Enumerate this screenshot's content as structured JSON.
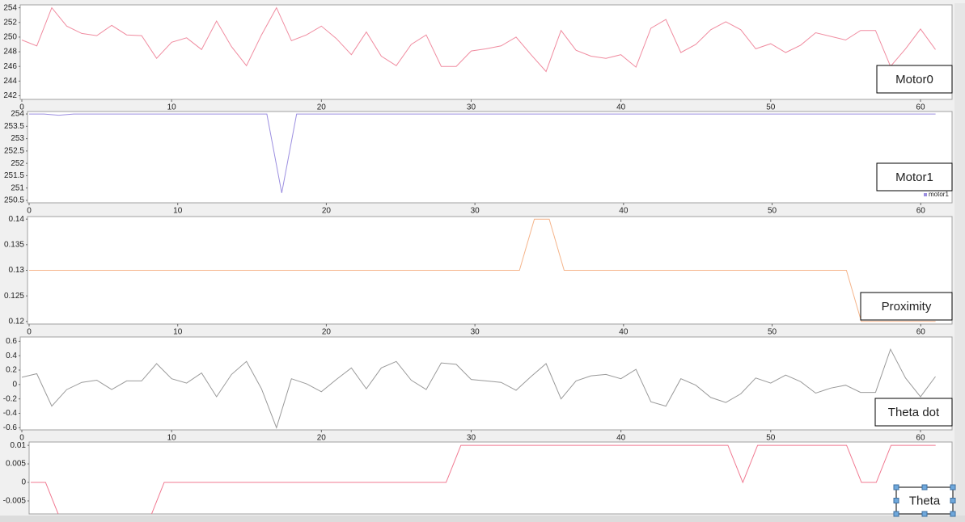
{
  "chart_data": [
    {
      "type": "line",
      "title": "Motor0",
      "x": [
        0,
        1,
        2,
        3,
        4,
        5,
        6,
        7,
        8,
        9,
        10,
        11,
        12,
        13,
        14,
        15,
        16,
        17,
        18,
        19,
        20,
        21,
        22,
        23,
        24,
        25,
        26,
        27,
        28,
        29,
        30,
        31,
        32,
        33,
        34,
        35,
        36,
        37,
        38,
        39,
        40,
        41,
        42,
        43,
        44,
        45,
        46,
        47,
        48,
        49,
        50,
        51,
        52,
        53,
        54,
        55,
        56,
        57,
        58,
        59,
        60,
        61
      ],
      "values": [
        249.6,
        248.8,
        254,
        251.5,
        250.5,
        250.2,
        251.6,
        250.3,
        250.2,
        247.1,
        249.3,
        249.9,
        248.3,
        252.2,
        248.7,
        246.1,
        250.3,
        254,
        249.5,
        250.3,
        251.5,
        249.8,
        247.6,
        250.7,
        247.4,
        246.1,
        249,
        250.3,
        246,
        246,
        248.1,
        248.4,
        248.8,
        250,
        247.6,
        245.3,
        250.9,
        248.2,
        247.4,
        247.1,
        247.6,
        245.9,
        251.2,
        252.4,
        247.9,
        249,
        251,
        252.1,
        251,
        248.4,
        249.1,
        247.9,
        248.9,
        250.6,
        250.1,
        249.6,
        250.9,
        250.9,
        246,
        248.4,
        251.1,
        248.3
      ],
      "color": "#f08ca0",
      "xlim": [
        0,
        62
      ],
      "xticks": [
        0,
        10,
        20,
        30,
        40,
        50,
        60
      ],
      "ylim": [
        241.5,
        254.4
      ],
      "yticks": [
        242,
        244,
        246,
        248,
        250,
        252,
        254
      ]
    },
    {
      "type": "line",
      "title": "Motor1",
      "x": [
        0,
        1,
        2,
        3,
        4,
        5,
        6,
        7,
        8,
        9,
        10,
        11,
        12,
        13,
        14,
        15,
        16,
        17,
        18,
        19,
        20,
        21,
        22,
        23,
        24,
        25,
        26,
        27,
        28,
        29,
        30,
        31,
        32,
        33,
        34,
        35,
        36,
        37,
        38,
        39,
        40,
        41,
        42,
        43,
        44,
        45,
        46,
        47,
        48,
        49,
        50,
        51,
        52,
        53,
        54,
        55,
        56,
        57,
        58,
        59,
        60,
        61
      ],
      "series": [
        {
          "name": "motor1",
          "color": "#9c8fe0",
          "values": [
            254,
            254,
            253.95,
            254,
            254,
            254,
            254,
            254,
            254,
            254,
            254,
            254,
            254,
            254,
            254,
            254,
            254,
            250.8,
            254,
            254,
            254,
            254,
            254,
            254,
            254,
            254,
            254,
            254,
            254,
            254,
            254,
            254,
            254,
            254,
            254,
            254,
            254,
            254,
            254,
            254,
            254,
            254,
            254,
            254,
            254,
            254,
            254,
            254,
            254,
            254,
            254,
            254,
            254,
            254,
            254,
            254,
            254,
            254,
            254,
            254,
            254,
            254
          ]
        }
      ],
      "xlim": [
        0,
        62
      ],
      "xticks": [
        0,
        10,
        20,
        30,
        40,
        50,
        60
      ],
      "ylim": [
        250.4,
        254.1
      ],
      "yticks": [
        250.5,
        251,
        251.5,
        252,
        252.5,
        253,
        253.5,
        254
      ]
    },
    {
      "type": "line",
      "title": "Proximity",
      "x": [
        0,
        1,
        2,
        3,
        4,
        5,
        6,
        7,
        8,
        9,
        10,
        11,
        12,
        13,
        14,
        15,
        16,
        17,
        18,
        19,
        20,
        21,
        22,
        23,
        24,
        25,
        26,
        27,
        28,
        29,
        30,
        31,
        32,
        33,
        34,
        35,
        36,
        37,
        38,
        39,
        40,
        41,
        42,
        43,
        44,
        45,
        46,
        47,
        48,
        49,
        50,
        51,
        52,
        53,
        54,
        55,
        56,
        57,
        58,
        59,
        60,
        61
      ],
      "values": [
        0.13,
        0.13,
        0.13,
        0.13,
        0.13,
        0.13,
        0.13,
        0.13,
        0.13,
        0.13,
        0.13,
        0.13,
        0.13,
        0.13,
        0.13,
        0.13,
        0.13,
        0.13,
        0.13,
        0.13,
        0.13,
        0.13,
        0.13,
        0.13,
        0.13,
        0.13,
        0.13,
        0.13,
        0.13,
        0.13,
        0.13,
        0.13,
        0.13,
        0.13,
        0.14,
        0.14,
        0.13,
        0.13,
        0.13,
        0.13,
        0.13,
        0.13,
        0.13,
        0.13,
        0.13,
        0.13,
        0.13,
        0.13,
        0.13,
        0.13,
        0.13,
        0.13,
        0.13,
        0.13,
        0.13,
        0.13,
        0.12,
        0.12,
        0.12,
        0.12,
        0.12,
        0.12
      ],
      "color": "#f5b48a",
      "xlim": [
        0,
        62
      ],
      "xticks": [
        0,
        10,
        20,
        30,
        40,
        50,
        60
      ],
      "ylim": [
        0.1195,
        0.1405
      ],
      "yticks": [
        0.12,
        0.125,
        0.13,
        0.135,
        0.14
      ]
    },
    {
      "type": "line",
      "title": "Theta dot",
      "x": [
        0,
        1,
        2,
        3,
        4,
        5,
        6,
        7,
        8,
        9,
        10,
        11,
        12,
        13,
        14,
        15,
        16,
        17,
        18,
        19,
        20,
        21,
        22,
        23,
        24,
        25,
        26,
        27,
        28,
        29,
        30,
        31,
        32,
        33,
        34,
        35,
        36,
        37,
        38,
        39,
        40,
        41,
        42,
        43,
        44,
        45,
        46,
        47,
        48,
        49,
        50,
        51,
        52,
        53,
        54,
        55,
        56,
        57,
        58,
        59,
        60,
        61
      ],
      "values": [
        0.1,
        0.15,
        -0.3,
        -0.07,
        0.03,
        0.06,
        -0.07,
        0.05,
        0.05,
        0.29,
        0.08,
        0.02,
        0.16,
        -0.17,
        0.14,
        0.32,
        -0.06,
        -0.6,
        0.08,
        0.01,
        -0.1,
        0.07,
        0.23,
        -0.06,
        0.23,
        0.32,
        0.06,
        -0.07,
        0.3,
        0.28,
        0.07,
        0.05,
        0.03,
        -0.08,
        0.11,
        0.29,
        -0.2,
        0.05,
        0.12,
        0.14,
        0.08,
        0.21,
        -0.24,
        -0.3,
        0.08,
        -0.01,
        -0.18,
        -0.25,
        -0.13,
        0.09,
        0.02,
        0.13,
        0.04,
        -0.12,
        -0.05,
        -0.01,
        -0.11,
        -0.11,
        0.49,
        0.09,
        -0.17,
        0.11
      ],
      "color": "#9a9a9a",
      "xlim": [
        0,
        62
      ],
      "xticks": [
        0,
        10,
        20,
        30,
        40,
        50,
        60
      ],
      "ylim": [
        -0.63,
        0.66
      ],
      "yticks": [
        -0.6,
        -0.4,
        -0.2,
        0,
        0.2,
        0.4,
        0.6
      ]
    },
    {
      "type": "line",
      "title": "Theta",
      "x": [
        0,
        1,
        2,
        3,
        4,
        5,
        6,
        7,
        8,
        9,
        10,
        11,
        12,
        13,
        14,
        15,
        16,
        17,
        18,
        19,
        20,
        21,
        22,
        23,
        24,
        25,
        26,
        27,
        28,
        29,
        30,
        31,
        32,
        33,
        34,
        35,
        36,
        37,
        38,
        39,
        40,
        41,
        42,
        43,
        44,
        45,
        46,
        47,
        48,
        49,
        50,
        51,
        52,
        53,
        54,
        55,
        56,
        57,
        58,
        59,
        60,
        61
      ],
      "values": [
        0,
        0,
        -0.01,
        -0.01,
        -0.01,
        -0.01,
        -0.01,
        -0.01,
        -0.01,
        0,
        0,
        0,
        0,
        0,
        0,
        0,
        0,
        0,
        0,
        0,
        0,
        0,
        0,
        0,
        0,
        0,
        0,
        0,
        0,
        0.01,
        0.01,
        0.01,
        0.01,
        0.01,
        0.01,
        0.01,
        0.01,
        0.01,
        0.01,
        0.01,
        0.01,
        0.01,
        0.01,
        0.01,
        0.01,
        0.01,
        0.01,
        0.01,
        0,
        0.01,
        0.01,
        0.01,
        0.01,
        0.01,
        0.01,
        0.01,
        0,
        0,
        0.01,
        0.01,
        0.01,
        0.01
      ],
      "color": "#f07890",
      "xlim": [
        0,
        62
      ],
      "ylim": [
        -0.0085,
        0.0109
      ],
      "yticks": [
        -0.005,
        0,
        0.005,
        0.01
      ]
    }
  ]
}
